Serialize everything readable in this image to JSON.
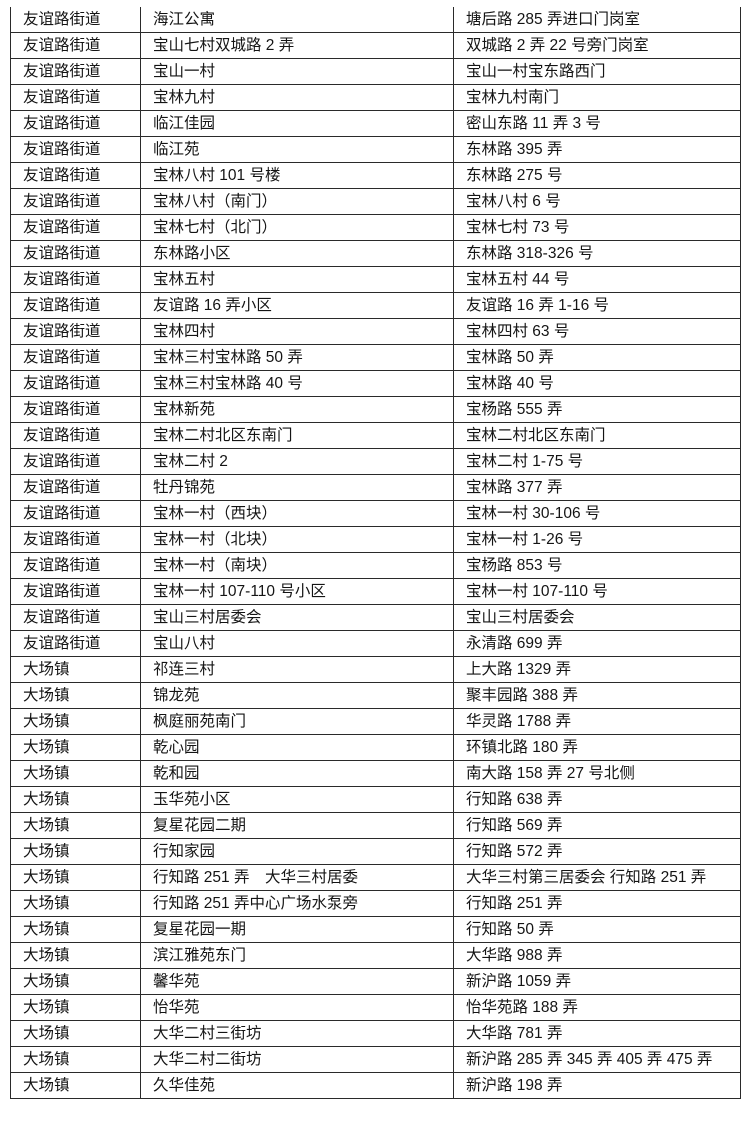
{
  "page": {
    "background_color": "#ffffff",
    "text_color": "#141414",
    "border_color": "#2a2a2a"
  },
  "table": {
    "column_keys": [
      "street",
      "community",
      "address"
    ],
    "rows": [
      {
        "street": "友谊路街道",
        "community": "海江公寓",
        "address": "塘后路 285 弄进口门岗室"
      },
      {
        "street": "友谊路街道",
        "community": "宝山七村双城路 2 弄",
        "address": "双城路 2 弄 22 号旁门岗室"
      },
      {
        "street": "友谊路街道",
        "community": "宝山一村",
        "address": "宝山一村宝东路西门"
      },
      {
        "street": "友谊路街道",
        "community": "宝林九村",
        "address": "宝林九村南门"
      },
      {
        "street": "友谊路街道",
        "community": "临江佳园",
        "address": "密山东路 11 弄 3 号"
      },
      {
        "street": "友谊路街道",
        "community": "临江苑",
        "address": "东林路 395 弄"
      },
      {
        "street": "友谊路街道",
        "community": "宝林八村 101 号楼",
        "address": "东林路 275 号"
      },
      {
        "street": "友谊路街道",
        "community": "宝林八村（南门）",
        "address": "宝林八村 6 号"
      },
      {
        "street": "友谊路街道",
        "community": "宝林七村（北门）",
        "address": "宝林七村 73 号"
      },
      {
        "street": "友谊路街道",
        "community": "东林路小区",
        "address": "东林路 318-326 号"
      },
      {
        "street": "友谊路街道",
        "community": "宝林五村",
        "address": "宝林五村 44 号"
      },
      {
        "street": "友谊路街道",
        "community": "友谊路 16 弄小区",
        "address": "友谊路 16 弄 1-16 号"
      },
      {
        "street": "友谊路街道",
        "community": "宝林四村",
        "address": "宝林四村 63 号"
      },
      {
        "street": "友谊路街道",
        "community": "宝林三村宝林路 50 弄",
        "address": "宝林路 50 弄"
      },
      {
        "street": "友谊路街道",
        "community": "宝林三村宝林路 40 号",
        "address": "宝林路 40 号"
      },
      {
        "street": "友谊路街道",
        "community": "宝林新苑",
        "address": "宝杨路 555 弄"
      },
      {
        "street": "友谊路街道",
        "community": "宝林二村北区东南门",
        "address": "宝林二村北区东南门"
      },
      {
        "street": "友谊路街道",
        "community": "宝林二村 2",
        "address": "宝林二村 1-75 号"
      },
      {
        "street": "友谊路街道",
        "community": "牡丹锦苑",
        "address": "宝林路 377 弄"
      },
      {
        "street": "友谊路街道",
        "community": "宝林一村（西块）",
        "address": "宝林一村 30-106 号"
      },
      {
        "street": "友谊路街道",
        "community": "宝林一村（北块）",
        "address": "宝林一村 1-26 号"
      },
      {
        "street": "友谊路街道",
        "community": "宝林一村（南块）",
        "address": "宝杨路 853 号"
      },
      {
        "street": "友谊路街道",
        "community": "宝林一村 107-110 号小区",
        "address": "宝林一村 107-110 号"
      },
      {
        "street": "友谊路街道",
        "community": "宝山三村居委会",
        "address": "宝山三村居委会"
      },
      {
        "street": "友谊路街道",
        "community": "宝山八村",
        "address": "永清路 699 弄"
      },
      {
        "street": "大场镇",
        "community": "祁连三村",
        "address": "上大路 1329 弄"
      },
      {
        "street": "大场镇",
        "community": "锦龙苑",
        "address": "聚丰园路 388 弄"
      },
      {
        "street": "大场镇",
        "community": "枫庭丽苑南门",
        "address": "华灵路 1788 弄"
      },
      {
        "street": "大场镇",
        "community": "乾心园",
        "address": "环镇北路 180 弄"
      },
      {
        "street": "大场镇",
        "community": "乾和园",
        "address": "南大路 158 弄  27 号北侧"
      },
      {
        "street": "大场镇",
        "community": "玉华苑小区",
        "address": "行知路 638 弄"
      },
      {
        "street": "大场镇",
        "community": "复星花园二期",
        "address": "行知路 569 弄"
      },
      {
        "street": "大场镇",
        "community": "行知家园",
        "address": "行知路 572 弄"
      },
      {
        "street": "大场镇",
        "community": "行知路 251 弄　大华三村居委",
        "address": "大华三村第三居委会 行知路 251 弄"
      },
      {
        "street": "大场镇",
        "community": "行知路 251 弄中心广场水泵旁",
        "address": "行知路 251 弄"
      },
      {
        "street": "大场镇",
        "community": "复星花园一期",
        "address": "行知路 50 弄"
      },
      {
        "street": "大场镇",
        "community": "滨江雅苑东门",
        "address": "大华路 988 弄"
      },
      {
        "street": "大场镇",
        "community": "馨华苑",
        "address": "新沪路 1059 弄"
      },
      {
        "street": "大场镇",
        "community": "怡华苑",
        "address": "怡华苑路 188 弄"
      },
      {
        "street": "大场镇",
        "community": "大华二村三街坊",
        "address": "大华路 781 弄"
      },
      {
        "street": "大场镇",
        "community": "大华二村二街坊",
        "address": "新沪路 285 弄 345 弄 405 弄 475 弄"
      },
      {
        "street": "大场镇",
        "community": "久华佳苑",
        "address": "新沪路 198 弄"
      }
    ]
  }
}
